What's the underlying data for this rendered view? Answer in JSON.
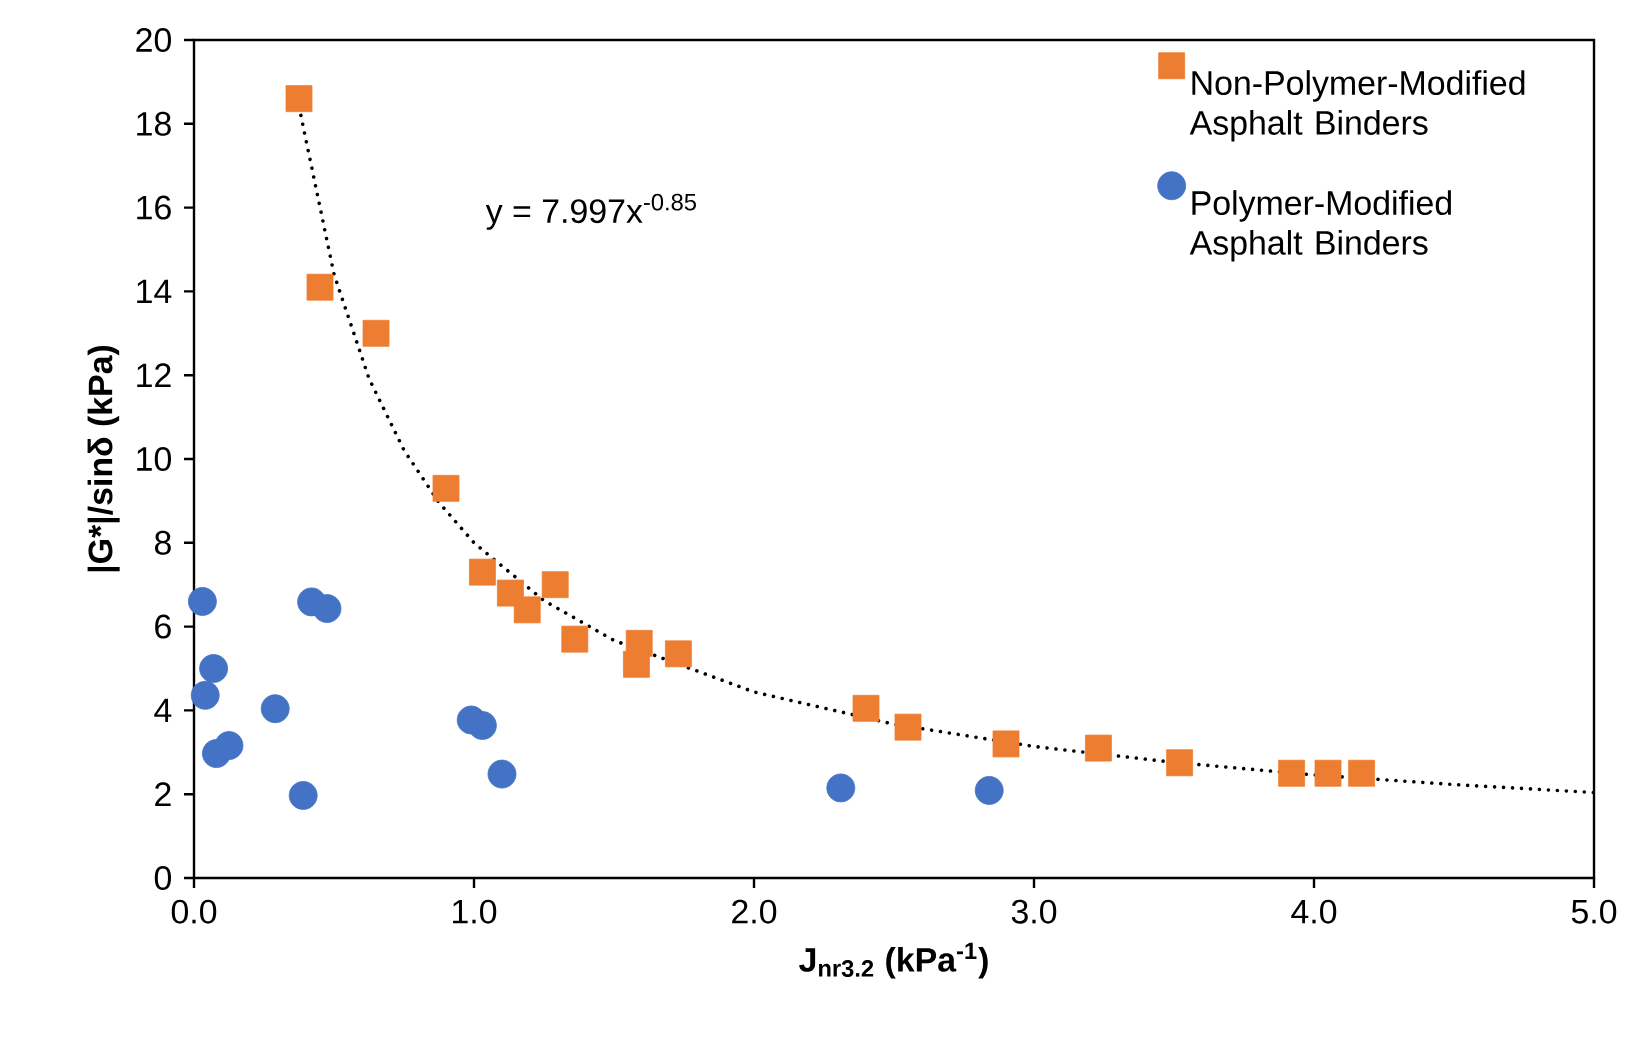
{
  "chart_data": {
    "type": "scatter",
    "xlabel": "J$_{nr3.2}$ (kPa$^{-1}$)",
    "ylabel": "|G*|/sinδ (kPa)",
    "annotations": [
      "y = 7.997x$^{-0.85}$"
    ],
    "xlim": [
      0,
      5
    ],
    "xticks": [
      {
        "value": 0,
        "label": "0.0"
      },
      {
        "value": 1,
        "label": "1.0"
      },
      {
        "value": 2,
        "label": "2.0"
      },
      {
        "value": 3,
        "label": "3.0"
      },
      {
        "value": 4,
        "label": "4.0"
      },
      {
        "value": 5,
        "label": "5.0"
      }
    ],
    "ylim": [
      0,
      20
    ],
    "yticks": [
      0,
      2,
      4,
      6,
      8,
      10,
      12,
      14,
      16,
      18,
      20
    ],
    "grid": false,
    "legend": "top right",
    "series": [
      {
        "name": "Non-Polymer-Modified Asphalt Binders",
        "color": "#ed7d31",
        "marker": "square",
        "x": [
          0.375,
          0.45,
          0.65,
          0.9,
          1.03,
          1.13,
          1.19,
          1.29,
          1.36,
          1.59,
          1.58,
          1.73,
          2.4,
          2.55,
          2.9,
          3.23,
          3.52,
          3.92,
          4.05,
          4.17
        ],
        "values": [
          18.6,
          14.1,
          13.0,
          9.3,
          7.3,
          6.8,
          6.4,
          7.0,
          5.7,
          5.6,
          5.1,
          5.35,
          4.05,
          3.6,
          3.2,
          3.1,
          2.75,
          2.5,
          2.5,
          2.5
        ]
      },
      {
        "name": "Polymer-Modified Asphalt Binders",
        "color": "#4472c4",
        "marker": "circle",
        "x": [
          0.03,
          0.07,
          0.04,
          0.08,
          0.125,
          0.29,
          0.39,
          0.42,
          0.475,
          0.99,
          1.03,
          1.1,
          2.31,
          2.84
        ],
        "values": [
          6.6,
          5.0,
          4.36,
          2.97,
          3.16,
          4.04,
          1.97,
          6.59,
          6.43,
          3.77,
          3.64,
          2.48,
          2.15,
          2.09
        ]
      },
      {
        "type": "line",
        "color": "#000000",
        "marker": "none",
        "line_style": "dotted",
        "x": [
          0.375,
          0.5,
          0.625,
          0.75,
          0.875,
          1,
          1.25,
          1.5,
          2,
          2.5,
          3,
          3.5,
          4,
          4.5,
          5
        ],
        "values": [
          18.41,
          14.41,
          11.92,
          10.21,
          8.96,
          8.0,
          6.62,
          5.67,
          4.44,
          3.67,
          3.14,
          2.76,
          2.46,
          2.23,
          2.04
        ]
      }
    ]
  }
}
